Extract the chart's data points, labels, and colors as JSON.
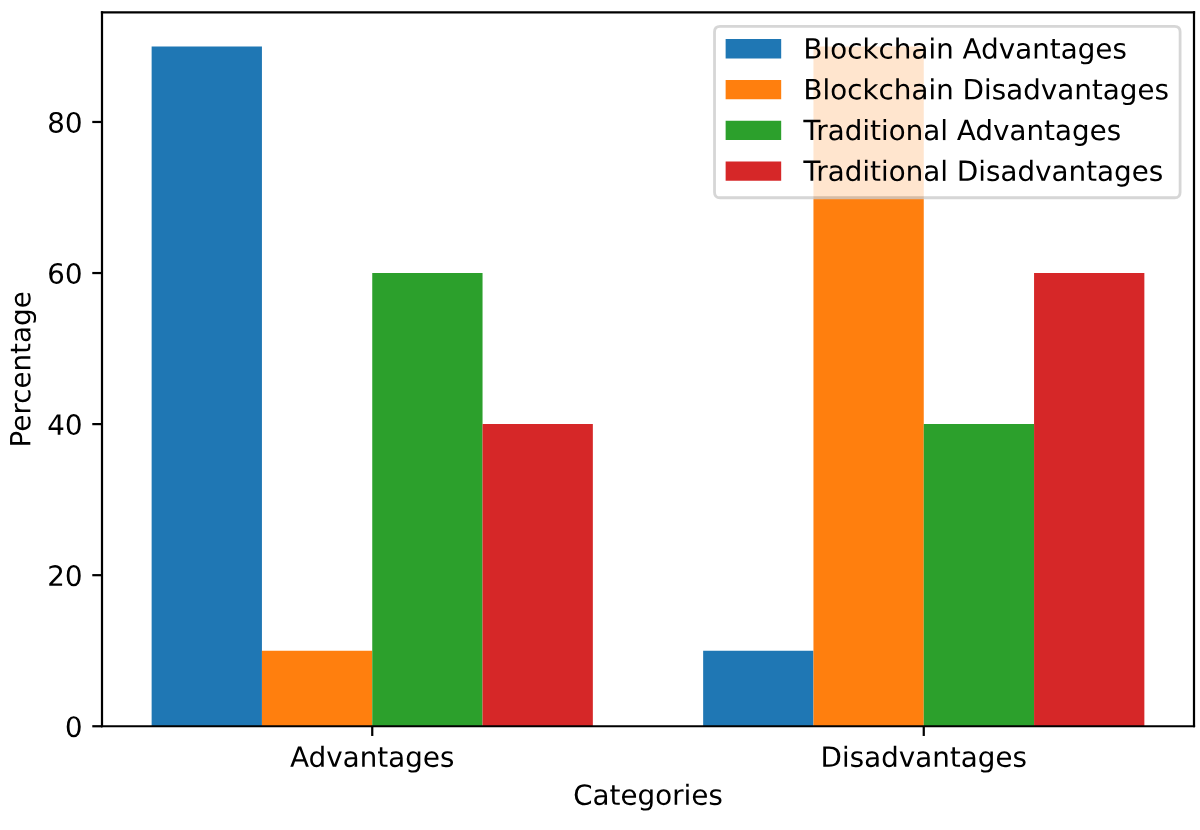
{
  "chart_data": {
    "type": "bar",
    "xlabel": "Categories",
    "ylabel": "Percentage",
    "categories": [
      "Advantages",
      "Disadvantages"
    ],
    "series": [
      {
        "name": "Blockchain Advantages",
        "color": "#1f77b4",
        "values": [
          90,
          10
        ]
      },
      {
        "name": "Blockchain Disadvantages",
        "color": "#ff7f0e",
        "values": [
          10,
          90
        ]
      },
      {
        "name": "Traditional Advantages",
        "color": "#2ca02c",
        "values": [
          60,
          40
        ]
      },
      {
        "name": "Traditional Disadvantages",
        "color": "#d62728",
        "values": [
          40,
          60
        ]
      }
    ],
    "ylim": [
      0,
      94.5
    ],
    "yticks": [
      0,
      20,
      40,
      60,
      80
    ],
    "grid": false,
    "legend": "top right"
  }
}
